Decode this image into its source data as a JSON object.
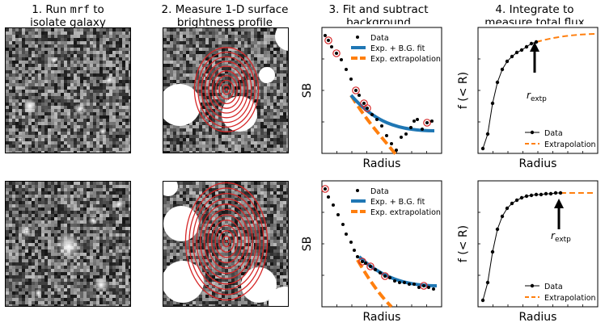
{
  "columns": [
    {
      "num": "1.",
      "line1a": "Run ",
      "line1code": "mrf",
      "line1b": " to",
      "line2": "isolate galaxy"
    },
    {
      "num": "2.",
      "line1": "Measure 1-D surface",
      "line2": "brightness profile"
    },
    {
      "num": "3.",
      "line1": "Fit and subtract",
      "line2": "background"
    },
    {
      "num": "4.",
      "line1": "Integrate to",
      "line2": "measure total flux"
    }
  ],
  "sb_panel": {
    "ylabel": "SB",
    "xlabel": "Radius",
    "legend": {
      "data": "Data",
      "fit": "Exp. + B.G. fit",
      "extrap": "Exp. extrapolation"
    }
  },
  "flux_panel": {
    "ylabel": "f (< R)",
    "xlabel": "Radius",
    "annotation": "r",
    "annotation_sub": "extp",
    "legend": {
      "data": "Data",
      "extrap": "Extrapolation"
    }
  },
  "colors": {
    "fit": "#1f77b4",
    "extrap": "#ff7f0e",
    "ellipse": "#d62728",
    "marker": "#000000"
  }
}
